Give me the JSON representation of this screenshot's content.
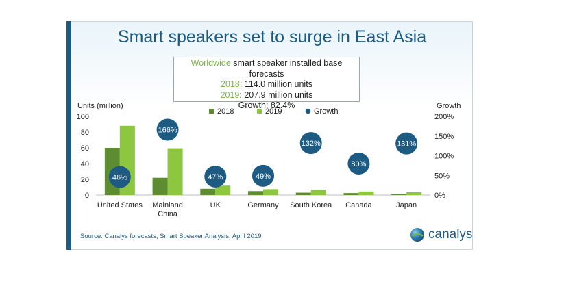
{
  "header": {
    "title": "Smart speakers set to surge in East Asia"
  },
  "summary": {
    "line1_highlight": "Worldwide",
    "line1_rest": " smart speaker installed base forecasts",
    "line2_year": "2018",
    "line2_rest": ": 114.0 million units",
    "line3_year": "2019",
    "line3_rest": ": 207.9 million units",
    "line4": "Growth: 82.4%"
  },
  "footer": {
    "source": "Source:  Canalys forecasts, Smart Speaker Analysis, April 2019",
    "brand": "canalys"
  },
  "colors": {
    "series_2018": "#5e8c31",
    "series_2019": "#8dc63f",
    "growth": "#1d5b82",
    "accent": "#1d5b82"
  },
  "chart_data": {
    "type": "bar",
    "ylabel": "Units (million)",
    "y2label": "Growth",
    "ylim": [
      0,
      100
    ],
    "y2lim": [
      0,
      200
    ],
    "yticks": [
      "0",
      "20",
      "40",
      "60",
      "80",
      "100"
    ],
    "y2ticks": [
      "0%",
      "50%",
      "100%",
      "150%",
      "200%"
    ],
    "legend": [
      "2018",
      "2019",
      "Growth"
    ],
    "legend_position": "top",
    "categories": [
      "United States",
      "Mainland China",
      "UK",
      "Germany",
      "South Korea",
      "Canada",
      "Japan"
    ],
    "series": [
      {
        "name": "2018",
        "values": [
          60,
          22,
          8,
          5,
          3,
          2.5,
          1.5
        ]
      },
      {
        "name": "2019",
        "values": [
          88,
          59.5,
          12,
          7.5,
          7,
          4.5,
          3.5
        ]
      }
    ],
    "growth": {
      "name": "Growth",
      "values": [
        46,
        166,
        47,
        49,
        132,
        80,
        131
      ],
      "labels": [
        "46%",
        "166%",
        "47%",
        "49%",
        "132%",
        "80%",
        "131%"
      ]
    }
  }
}
